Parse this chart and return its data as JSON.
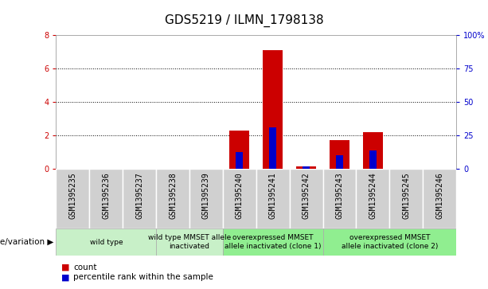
{
  "title": "GDS5219 / ILMN_1798138",
  "samples": [
    "GSM1395235",
    "GSM1395236",
    "GSM1395237",
    "GSM1395238",
    "GSM1395239",
    "GSM1395240",
    "GSM1395241",
    "GSM1395242",
    "GSM1395243",
    "GSM1395244",
    "GSM1395245",
    "GSM1395246"
  ],
  "counts": [
    0,
    0,
    0,
    0,
    0,
    2.3,
    7.1,
    0.15,
    1.7,
    2.2,
    0,
    0
  ],
  "percentiles": [
    0,
    0,
    0,
    0,
    0,
    12.5,
    31.25,
    1.875,
    10.0,
    13.75,
    0,
    0
  ],
  "ylim_left": [
    0,
    8
  ],
  "ylim_right": [
    0,
    100
  ],
  "yticks_left": [
    0,
    2,
    4,
    6,
    8
  ],
  "yticks_right": [
    0,
    25,
    50,
    75,
    100
  ],
  "ytick_labels_right": [
    "0",
    "25",
    "50",
    "75",
    "100%"
  ],
  "bar_color": "#cc0000",
  "percentile_color": "#0000cc",
  "bar_width": 0.6,
  "left_ylabel_color": "#cc0000",
  "right_ylabel_color": "#0000cc",
  "title_fontsize": 11,
  "tick_fontsize": 7,
  "table_fontsize": 7,
  "genotype_label": "genotype/variation",
  "legend_count_label": "count",
  "legend_pct_label": "percentile rank within the sample",
  "groups": [
    {
      "label": "wild type",
      "start": 0,
      "end": 2,
      "color": "#c8f0c8"
    },
    {
      "label": "wild type MMSET allele\ninactivated",
      "start": 3,
      "end": 4,
      "color": "#c8f0c8"
    },
    {
      "label": "overexpressed MMSET\nallele inactivated (clone 1)",
      "start": 5,
      "end": 7,
      "color": "#90ee90"
    },
    {
      "label": "overexpressed MMSET\nallele inactivated (clone 2)",
      "start": 8,
      "end": 11,
      "color": "#90ee90"
    }
  ],
  "cell_bg": "#d0d0d0",
  "cell_edge": "#ffffff",
  "plot_bg": "#ffffff"
}
